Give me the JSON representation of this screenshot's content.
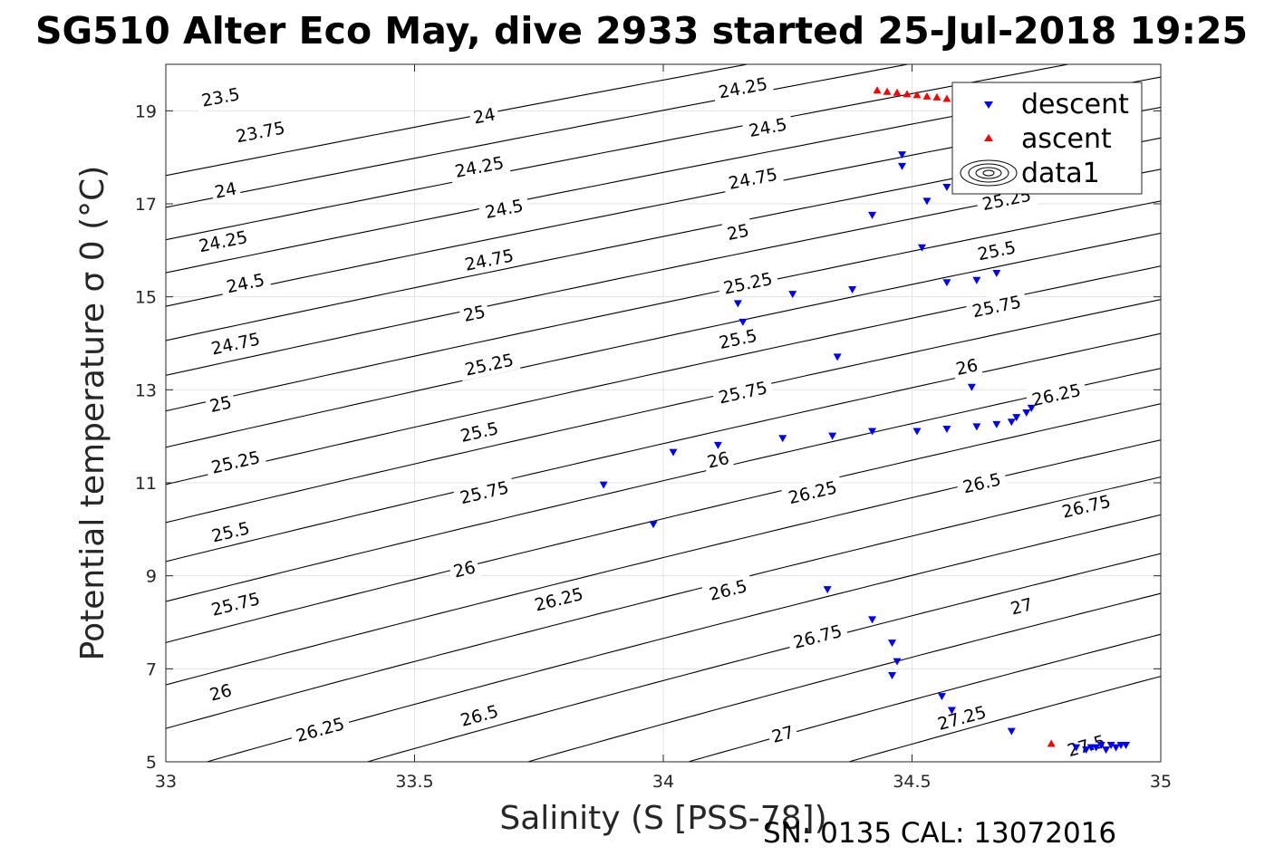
{
  "title": "SG510 Alter Eco May, dive 2933 started 25-Jul-2018 19:25",
  "footer": "SN: 0135  CAL: 13072016",
  "chart_data": {
    "type": "scatter",
    "title": "SG510 Alter Eco May, dive 2933 started 25-Jul-2018 19:25",
    "xlabel": "Salinity (S [PSS-78])",
    "ylabel": "Potential temperature σ 0 (°C)",
    "xlim": [
      33,
      35
    ],
    "ylim": [
      5,
      20
    ],
    "xticks": [
      33,
      33.5,
      34,
      34.5,
      35
    ],
    "xtick_labels": [
      "33",
      "33.5",
      "34",
      "34.5",
      "35"
    ],
    "yticks": [
      5,
      7,
      9,
      11,
      13,
      15,
      17,
      19
    ],
    "ytick_labels": [
      "5",
      "7",
      "9",
      "11",
      "13",
      "15",
      "17",
      "19"
    ],
    "grid": true,
    "legend_position": "top-right",
    "legend": [
      "descent",
      "ascent",
      "data1"
    ],
    "contours": {
      "name": "data1",
      "levels": [
        23.5,
        23.75,
        24,
        24.25,
        24.5,
        24.75,
        25,
        25.25,
        25.5,
        25.75,
        26,
        26.25,
        26.5,
        26.75,
        27,
        27.25,
        27.5
      ],
      "labels": [
        {
          "text": "23.5",
          "x": 33.11,
          "y": 19.3
        },
        {
          "text": "23.75",
          "x": 33.19,
          "y": 18.55
        },
        {
          "text": "24",
          "x": 33.12,
          "y": 17.3
        },
        {
          "text": "24.25",
          "x": 33.115,
          "y": 16.2
        },
        {
          "text": "24.5",
          "x": 33.16,
          "y": 15.3
        },
        {
          "text": "24.75",
          "x": 33.14,
          "y": 14.0
        },
        {
          "text": "25",
          "x": 33.11,
          "y": 12.7
        },
        {
          "text": "25.25",
          "x": 33.14,
          "y": 11.45
        },
        {
          "text": "25.5",
          "x": 33.13,
          "y": 9.95
        },
        {
          "text": "25.75",
          "x": 33.14,
          "y": 8.4
        },
        {
          "text": "26",
          "x": 33.11,
          "y": 6.5
        },
        {
          "text": "26.25",
          "x": 33.31,
          "y": 5.7
        },
        {
          "text": "24",
          "x": 33.64,
          "y": 18.9
        },
        {
          "text": "24.25",
          "x": 33.63,
          "y": 17.8
        },
        {
          "text": "24.5",
          "x": 33.68,
          "y": 16.9
        },
        {
          "text": "24.75",
          "x": 33.65,
          "y": 15.8
        },
        {
          "text": "25",
          "x": 33.62,
          "y": 14.65
        },
        {
          "text": "25.25",
          "x": 33.65,
          "y": 13.55
        },
        {
          "text": "25.5",
          "x": 33.63,
          "y": 12.1
        },
        {
          "text": "25.75",
          "x": 33.64,
          "y": 10.8
        },
        {
          "text": "26",
          "x": 33.6,
          "y": 9.15
        },
        {
          "text": "26.25",
          "x": 33.79,
          "y": 8.5
        },
        {
          "text": "26.5",
          "x": 33.63,
          "y": 6.0
        },
        {
          "text": "24.25",
          "x": 34.16,
          "y": 19.5
        },
        {
          "text": "24.5",
          "x": 34.21,
          "y": 18.65
        },
        {
          "text": "24.75",
          "x": 34.18,
          "y": 17.55
        },
        {
          "text": "25",
          "x": 34.15,
          "y": 16.4
        },
        {
          "text": "25.25",
          "x": 34.17,
          "y": 15.3
        },
        {
          "text": "25.5",
          "x": 34.15,
          "y": 14.1
        },
        {
          "text": "25.75",
          "x": 34.16,
          "y": 12.95
        },
        {
          "text": "26",
          "x": 34.11,
          "y": 11.5
        },
        {
          "text": "26.25",
          "x": 34.3,
          "y": 10.8
        },
        {
          "text": "26.5",
          "x": 34.13,
          "y": 8.7
        },
        {
          "text": "26.75",
          "x": 34.31,
          "y": 7.7
        },
        {
          "text": "27",
          "x": 34.24,
          "y": 5.6
        },
        {
          "text": "25.25",
          "x": 34.69,
          "y": 17.1
        },
        {
          "text": "25.5",
          "x": 34.67,
          "y": 16.0
        },
        {
          "text": "25.75",
          "x": 34.67,
          "y": 14.8
        },
        {
          "text": "26",
          "x": 34.61,
          "y": 13.5
        },
        {
          "text": "26.25",
          "x": 34.79,
          "y": 12.9
        },
        {
          "text": "26.5",
          "x": 34.64,
          "y": 11.0
        },
        {
          "text": "26.75",
          "x": 34.85,
          "y": 10.5
        },
        {
          "text": "27",
          "x": 34.72,
          "y": 8.35
        },
        {
          "text": "27.25",
          "x": 34.6,
          "y": 5.95
        },
        {
          "text": "27.5",
          "x": 34.85,
          "y": 5.35
        }
      ]
    },
    "series": [
      {
        "name": "descent",
        "marker": "triangle-down",
        "color": "#0000ff",
        "points": [
          [
            34.48,
            18.05
          ],
          [
            34.48,
            17.8
          ],
          [
            34.57,
            17.35
          ],
          [
            34.53,
            17.05
          ],
          [
            34.42,
            16.75
          ],
          [
            34.52,
            16.05
          ],
          [
            34.15,
            14.85
          ],
          [
            34.16,
            14.45
          ],
          [
            34.26,
            15.05
          ],
          [
            34.38,
            15.15
          ],
          [
            34.57,
            15.3
          ],
          [
            34.63,
            15.35
          ],
          [
            34.67,
            15.5
          ],
          [
            34.35,
            13.7
          ],
          [
            34.62,
            13.05
          ],
          [
            33.88,
            10.95
          ],
          [
            33.98,
            10.1
          ],
          [
            34.02,
            11.65
          ],
          [
            34.11,
            11.8
          ],
          [
            34.24,
            11.95
          ],
          [
            34.34,
            12.0
          ],
          [
            34.42,
            12.1
          ],
          [
            34.51,
            12.1
          ],
          [
            34.57,
            12.15
          ],
          [
            34.63,
            12.2
          ],
          [
            34.67,
            12.25
          ],
          [
            34.7,
            12.3
          ],
          [
            34.71,
            12.4
          ],
          [
            34.73,
            12.5
          ],
          [
            34.74,
            12.6
          ],
          [
            34.33,
            8.7
          ],
          [
            34.42,
            8.05
          ],
          [
            34.46,
            7.55
          ],
          [
            34.47,
            7.15
          ],
          [
            34.46,
            6.85
          ],
          [
            34.56,
            6.4
          ],
          [
            34.58,
            6.1
          ],
          [
            34.7,
            5.65
          ],
          [
            34.83,
            5.3
          ],
          [
            34.85,
            5.25
          ],
          [
            34.87,
            5.3
          ],
          [
            34.89,
            5.25
          ],
          [
            34.9,
            5.35
          ],
          [
            34.91,
            5.3
          ],
          [
            34.92,
            5.35
          ],
          [
            34.93,
            5.35
          ],
          [
            34.86,
            5.3
          ],
          [
            34.88,
            5.35
          ]
        ]
      },
      {
        "name": "ascent",
        "marker": "triangle-up",
        "color": "#ff0000",
        "points": [
          [
            34.43,
            19.45
          ],
          [
            34.45,
            19.42
          ],
          [
            34.47,
            19.4
          ],
          [
            34.49,
            19.37
          ],
          [
            34.51,
            19.35
          ],
          [
            34.53,
            19.32
          ],
          [
            34.55,
            19.3
          ],
          [
            34.57,
            19.27
          ],
          [
            34.59,
            19.25
          ],
          [
            34.61,
            19.22
          ],
          [
            34.63,
            19.2
          ],
          [
            34.65,
            19.18
          ],
          [
            34.78,
            5.4
          ]
        ]
      }
    ]
  }
}
